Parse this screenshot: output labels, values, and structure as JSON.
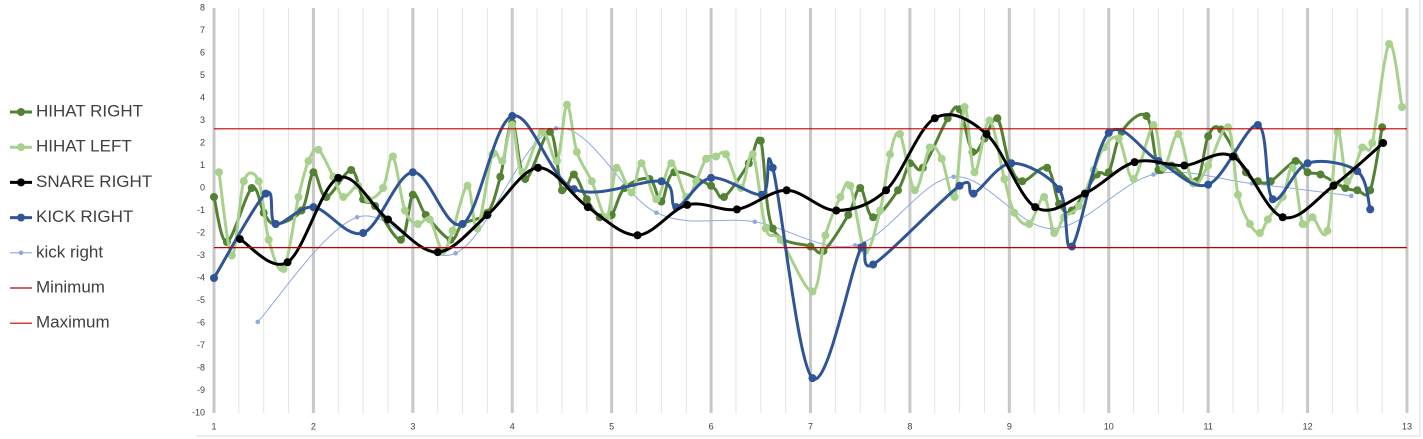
{
  "chart_data": {
    "type": "line",
    "smooth": true,
    "xlim": [
      1,
      13
    ],
    "xticks": [
      1,
      2,
      3,
      4,
      5,
      6,
      7,
      8,
      9,
      10,
      11,
      12,
      13
    ],
    "ylim": [
      -10,
      8
    ],
    "yticks": [
      -10,
      -9,
      -8,
      -7,
      -6,
      -5,
      -4,
      -3,
      -2,
      -1,
      0,
      1,
      2,
      3,
      4,
      5,
      6,
      7,
      8
    ],
    "grid": "x",
    "minor_grid_per_interval": 4,
    "legend": "left",
    "series": [
      {
        "name": "HIHAT RIGHT",
        "color": "#548235",
        "marker": true,
        "x": [
          1.0,
          1.13,
          1.38,
          1.5,
          1.62,
          1.88,
          2.0,
          2.13,
          2.38,
          2.5,
          2.62,
          2.88,
          3.0,
          3.13,
          3.38,
          3.5,
          3.75,
          3.88,
          4.0,
          4.13,
          4.38,
          4.5,
          4.62,
          4.75,
          4.88,
          5.0,
          5.13,
          5.38,
          5.5,
          5.63,
          6.0,
          6.13,
          6.38,
          6.5,
          6.62,
          7.0,
          7.13,
          7.38,
          7.5,
          7.63,
          7.88,
          8.0,
          8.13,
          8.38,
          8.5,
          8.63,
          8.75,
          8.88,
          9.0,
          9.13,
          9.38,
          9.5,
          9.63,
          9.88,
          10.0,
          10.13,
          10.38,
          10.5,
          10.63,
          10.88,
          11.0,
          11.13,
          11.38,
          11.5,
          11.63,
          11.88,
          12.0,
          12.13,
          12.38,
          12.5,
          12.63,
          12.75
        ],
        "values": [
          -0.4,
          -2.4,
          0.0,
          -1.1,
          -1.6,
          -1.0,
          0.7,
          -0.4,
          0.8,
          -0.5,
          -0.8,
          -2.3,
          -0.3,
          -1.2,
          -2.3,
          -1.6,
          -1.1,
          0.5,
          2.9,
          0.4,
          2.5,
          -0.1,
          0.6,
          -0.5,
          -1.3,
          -1.2,
          0.0,
          0.4,
          -0.6,
          0.7,
          0.1,
          -0.4,
          1.1,
          2.1,
          -1.8,
          -2.6,
          -2.8,
          -1.2,
          0.0,
          -1.3,
          -0.1,
          1.1,
          0.9,
          3.1,
          3.5,
          1.6,
          2.2,
          3.1,
          1.1,
          0.3,
          0.9,
          -0.7,
          -1.0,
          0.6,
          0.7,
          2.5,
          3.2,
          0.8,
          1.0,
          0.3,
          2.3,
          2.6,
          0.7,
          0.3,
          0.3,
          1.2,
          0.7,
          0.6,
          0.0,
          -0.1,
          -0.1,
          2.7
        ]
      },
      {
        "name": "HIHAT LEFT",
        "color": "#a9d18e",
        "marker": true,
        "x": [
          1.05,
          1.18,
          1.3,
          1.45,
          1.55,
          1.7,
          1.85,
          1.95,
          2.05,
          2.2,
          2.3,
          2.45,
          2.55,
          2.7,
          2.8,
          2.92,
          3.05,
          3.17,
          3.3,
          3.4,
          3.55,
          3.65,
          3.8,
          3.9,
          4.0,
          4.1,
          4.3,
          4.45,
          4.55,
          4.65,
          4.8,
          4.95,
          5.05,
          5.2,
          5.3,
          5.45,
          5.6,
          5.75,
          5.85,
          5.95,
          6.05,
          6.15,
          6.3,
          6.42,
          6.55,
          6.7,
          7.02,
          7.15,
          7.3,
          7.4,
          7.55,
          7.7,
          7.8,
          7.9,
          8.05,
          8.2,
          8.32,
          8.45,
          8.55,
          8.65,
          8.8,
          8.95,
          9.05,
          9.2,
          9.35,
          9.45,
          9.55,
          9.7,
          9.85,
          9.95,
          10.1,
          10.25,
          10.45,
          10.55,
          10.7,
          10.85,
          11.0,
          11.2,
          11.3,
          11.42,
          11.52,
          11.6,
          11.75,
          11.85,
          11.95,
          12.05,
          12.2,
          12.3,
          12.4,
          12.55,
          12.65,
          12.82,
          12.95
        ],
        "values": [
          0.7,
          -3.0,
          0.3,
          0.3,
          -2.3,
          -3.6,
          -0.4,
          1.2,
          1.7,
          0.5,
          -0.4,
          0.1,
          -0.5,
          0.0,
          1.4,
          -1.0,
          -1.6,
          -1.4,
          -2.8,
          -1.9,
          0.1,
          -1.8,
          1.5,
          1.2,
          2.8,
          0.7,
          2.5,
          1.2,
          3.7,
          1.6,
          0.3,
          -1.3,
          0.9,
          -0.2,
          1.1,
          -0.5,
          1.1,
          -0.4,
          0.3,
          1.3,
          1.4,
          1.5,
          0.0,
          1.5,
          -1.8,
          -2.3,
          -4.6,
          -2.1,
          -0.4,
          0.1,
          -2.8,
          -1.0,
          1.5,
          2.4,
          -0.1,
          1.8,
          1.3,
          -0.4,
          3.6,
          0.7,
          3.0,
          0.4,
          -1.1,
          -1.6,
          -0.4,
          -2.0,
          -1.3,
          -0.8,
          0.8,
          1.8,
          2.2,
          0.4,
          2.8,
          0.9,
          2.4,
          0.2,
          1.0,
          2.7,
          -0.3,
          -1.6,
          -2.0,
          -1.4,
          -0.4,
          0.9,
          -1.6,
          -1.3,
          -1.9,
          2.5,
          0.3,
          1.8,
          2.0,
          6.4,
          3.6
        ]
      },
      {
        "name": "SNARE RIGHT",
        "color": "#000000",
        "marker": true,
        "x": [
          1.26,
          1.74,
          2.25,
          2.75,
          3.25,
          3.75,
          4.26,
          4.76,
          5.26,
          5.76,
          6.26,
          6.76,
          7.26,
          7.76,
          8.25,
          8.77,
          9.26,
          9.76,
          10.26,
          10.76,
          11.25,
          11.75,
          12.26,
          12.76
        ],
        "values": [
          -2.27,
          -3.3,
          0.45,
          -1.4,
          -2.85,
          -1.2,
          0.9,
          -0.85,
          -2.1,
          -0.75,
          -0.95,
          -0.1,
          -1.0,
          -0.1,
          3.1,
          2.4,
          -0.85,
          -0.25,
          1.15,
          1.0,
          1.4,
          -1.3,
          0.1,
          2.0
        ]
      },
      {
        "name": "KICK RIGHT",
        "color": "#2f5597",
        "marker": true,
        "x": [
          1.0,
          1.52,
          1.62,
          2.0,
          2.5,
          3.0,
          3.5,
          4.0,
          4.62,
          5.5,
          5.65,
          6.0,
          6.51,
          6.62,
          7.02,
          7.51,
          7.63,
          8.5,
          8.64,
          9.02,
          9.5,
          9.63,
          10.0,
          10.5,
          11.0,
          11.5,
          11.65,
          12.0,
          12.5,
          12.63
        ],
        "values": [
          -4.0,
          -0.25,
          -1.6,
          -0.85,
          -2.0,
          0.7,
          -1.6,
          3.2,
          -0.05,
          0.3,
          -0.85,
          0.45,
          -0.3,
          0.9,
          -8.45,
          -2.65,
          -3.4,
          0.1,
          -0.25,
          1.1,
          -0.05,
          -2.6,
          2.45,
          1.2,
          0.15,
          2.8,
          -0.5,
          1.1,
          0.75,
          -0.95
        ]
      },
      {
        "name": "kick right",
        "color": "#8faadc",
        "marker": "small",
        "thin": true,
        "x": [
          1.44,
          2.44,
          3.43,
          4.44,
          5.45,
          6.44,
          7.45,
          8.44,
          9.43,
          10.45,
          11.44,
          12.44
        ],
        "values": [
          -5.95,
          -1.3,
          -2.9,
          2.65,
          -1.1,
          -1.5,
          -2.55,
          0.5,
          -1.8,
          0.6,
          0.2,
          -0.35
        ]
      },
      {
        "name": "Minimum",
        "color": "#c00000",
        "marker": false,
        "smooth": false,
        "x": [
          1,
          13
        ],
        "values": [
          -2.65,
          -2.65
        ]
      },
      {
        "name": "Maximum",
        "color": "#c00000",
        "marker": false,
        "smooth": false,
        "x": [
          1,
          13
        ],
        "values": [
          2.63,
          2.63
        ]
      }
    ]
  }
}
